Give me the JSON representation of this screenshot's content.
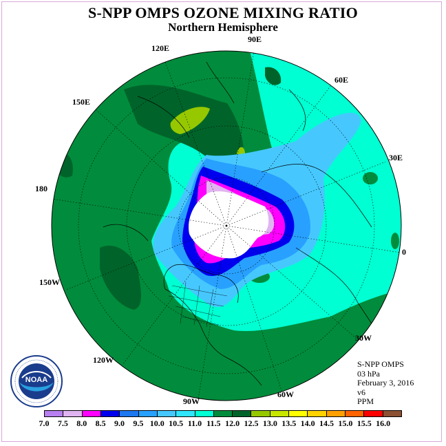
{
  "title": "S-NPP OMPS OZONE MIXING RATIO",
  "subtitle": "Northern Hemisphere",
  "longitude_labels": [
    "90E",
    "60E",
    "30E",
    "0",
    "30W",
    "60W",
    "90W",
    "120W",
    "150W",
    "180",
    "150E",
    "120E"
  ],
  "info": {
    "instrument": "S-NPP OMPS",
    "level": "03 hPa",
    "date": "February 3, 2016",
    "version": "v6",
    "units": "PPM"
  },
  "logo": {
    "text": "NOAA",
    "ring_text": "NATIONAL OCEANIC AND ATMOSPHERIC ADMINISTRATION · U.S. DEPARTMENT OF COMMERCE"
  },
  "colorbar": {
    "ticks": [
      "7.0",
      "7.5",
      "8.0",
      "8.5",
      "9.0",
      "9.5",
      "10.0",
      "10.5",
      "11.0",
      "11.5",
      "12.0",
      "12.5",
      "13.0",
      "13.5",
      "14.0",
      "14.5",
      "15.0",
      "15.5",
      "16.0"
    ],
    "colors": [
      "#b77ff0",
      "#e0b4f0",
      "#ff00ff",
      "#0000ee",
      "#1e78f0",
      "#28a0ff",
      "#46c8ff",
      "#30e6ff",
      "#00ffd2",
      "#008c3c",
      "#00642a",
      "#96c800",
      "#c8e600",
      "#ffff00",
      "#ffd200",
      "#ffa000",
      "#ff6400",
      "#ff0000",
      "#8c5032"
    ]
  },
  "map_colors": {
    "ocean_bg": "#00ffd2",
    "dark_green": "#008c3c",
    "darker_green": "#00642a",
    "yellow_green": "#96c800",
    "polar_night": "#ffffff"
  }
}
